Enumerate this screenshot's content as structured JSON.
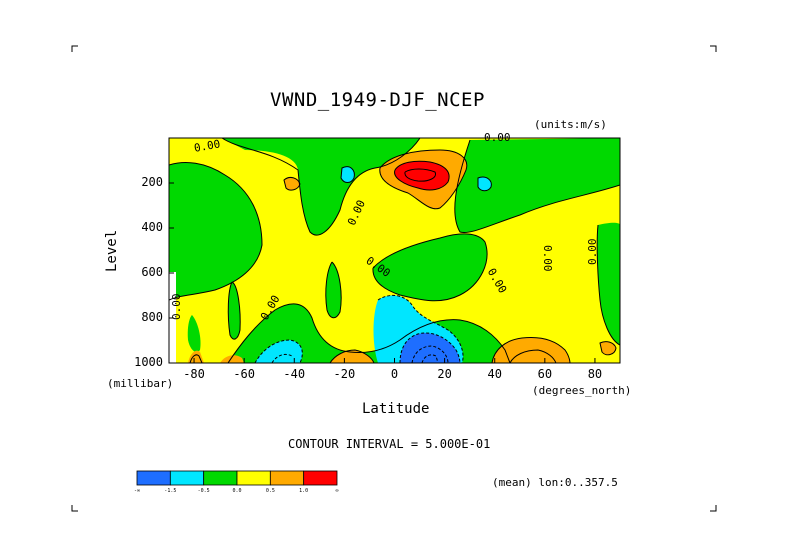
{
  "chart_data": {
    "type": "heatmap",
    "title": "VWND_1949-DJF_NCEP",
    "units_label": "(units:m/s)",
    "xlabel": "Latitude",
    "ylabel": "Level",
    "x_units_label": "(degrees_north)",
    "y_units_label": "(millibar)",
    "x_ticks": [
      -80,
      -60,
      -40,
      -20,
      0,
      20,
      40,
      60,
      80
    ],
    "x_tick_labels": [
      "-80",
      "-60",
      "-40",
      "-20",
      "0",
      "20",
      "40",
      "60",
      "80"
    ],
    "y_ticks": [
      200,
      400,
      600,
      800,
      1000
    ],
    "y_tick_labels": [
      "200",
      "400",
      "600",
      "800",
      "1000"
    ],
    "xlim": [
      -90,
      90
    ],
    "ylim": [
      1000,
      0
    ],
    "contour_interval_text": "CONTOUR INTERVAL = 5.000E-01",
    "contour_labels": [
      "0.00",
      "0.00",
      "0.00",
      "0.00",
      "0.00",
      "0.00",
      "0.00",
      "0.00",
      "0.00"
    ],
    "mean_text": "(mean) lon:0..357.5",
    "colorbar": {
      "colors": [
        "#1e6eff",
        "#00e6ff",
        "#00d900",
        "#ffff00",
        "#ffaa00",
        "#ff0000"
      ],
      "labels": [
        "-∞",
        "-1.5",
        "-0.5",
        "0.0",
        "0.5",
        "1.0",
        "∞"
      ]
    }
  }
}
